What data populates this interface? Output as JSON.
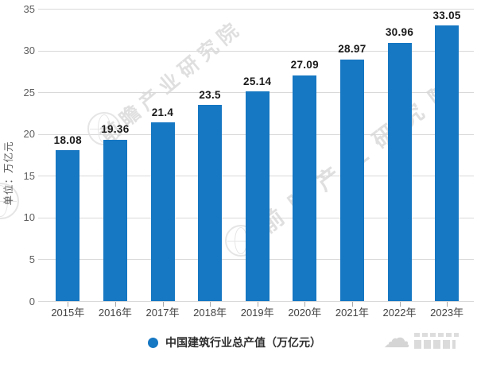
{
  "chart_data": {
    "type": "bar",
    "title": "",
    "categories": [
      "2015年",
      "2016年",
      "2017年",
      "2018年",
      "2019年",
      "2020年",
      "2021年",
      "2022年",
      "2023年"
    ],
    "values": [
      18.08,
      19.36,
      21.4,
      23.5,
      25.14,
      27.09,
      28.97,
      30.96,
      33.05
    ],
    "xlabel": "",
    "ylabel": "单位：万亿元",
    "ylim": [
      0,
      35
    ],
    "yticks": [
      0,
      5,
      10,
      15,
      20,
      25,
      30,
      35
    ],
    "grid": "horizontal",
    "legend": {
      "position": "bottom",
      "marker": "circle",
      "label": "中国建筑行业总产值（万亿元）"
    },
    "colors": {
      "bar": "#1677C2",
      "gridline": "#D9D9D9",
      "value_label": "#1A1A1A",
      "y_tick_label": "#5D5D5D",
      "x_tick_label": "#424242",
      "legend_label": "#2E2E2E",
      "watermark": "#D8D8D8"
    }
  },
  "watermark": {
    "text": "前瞻产业研究院",
    "logo": "globe-icon"
  },
  "corner_logo": {
    "icon": "cloud-icon"
  }
}
